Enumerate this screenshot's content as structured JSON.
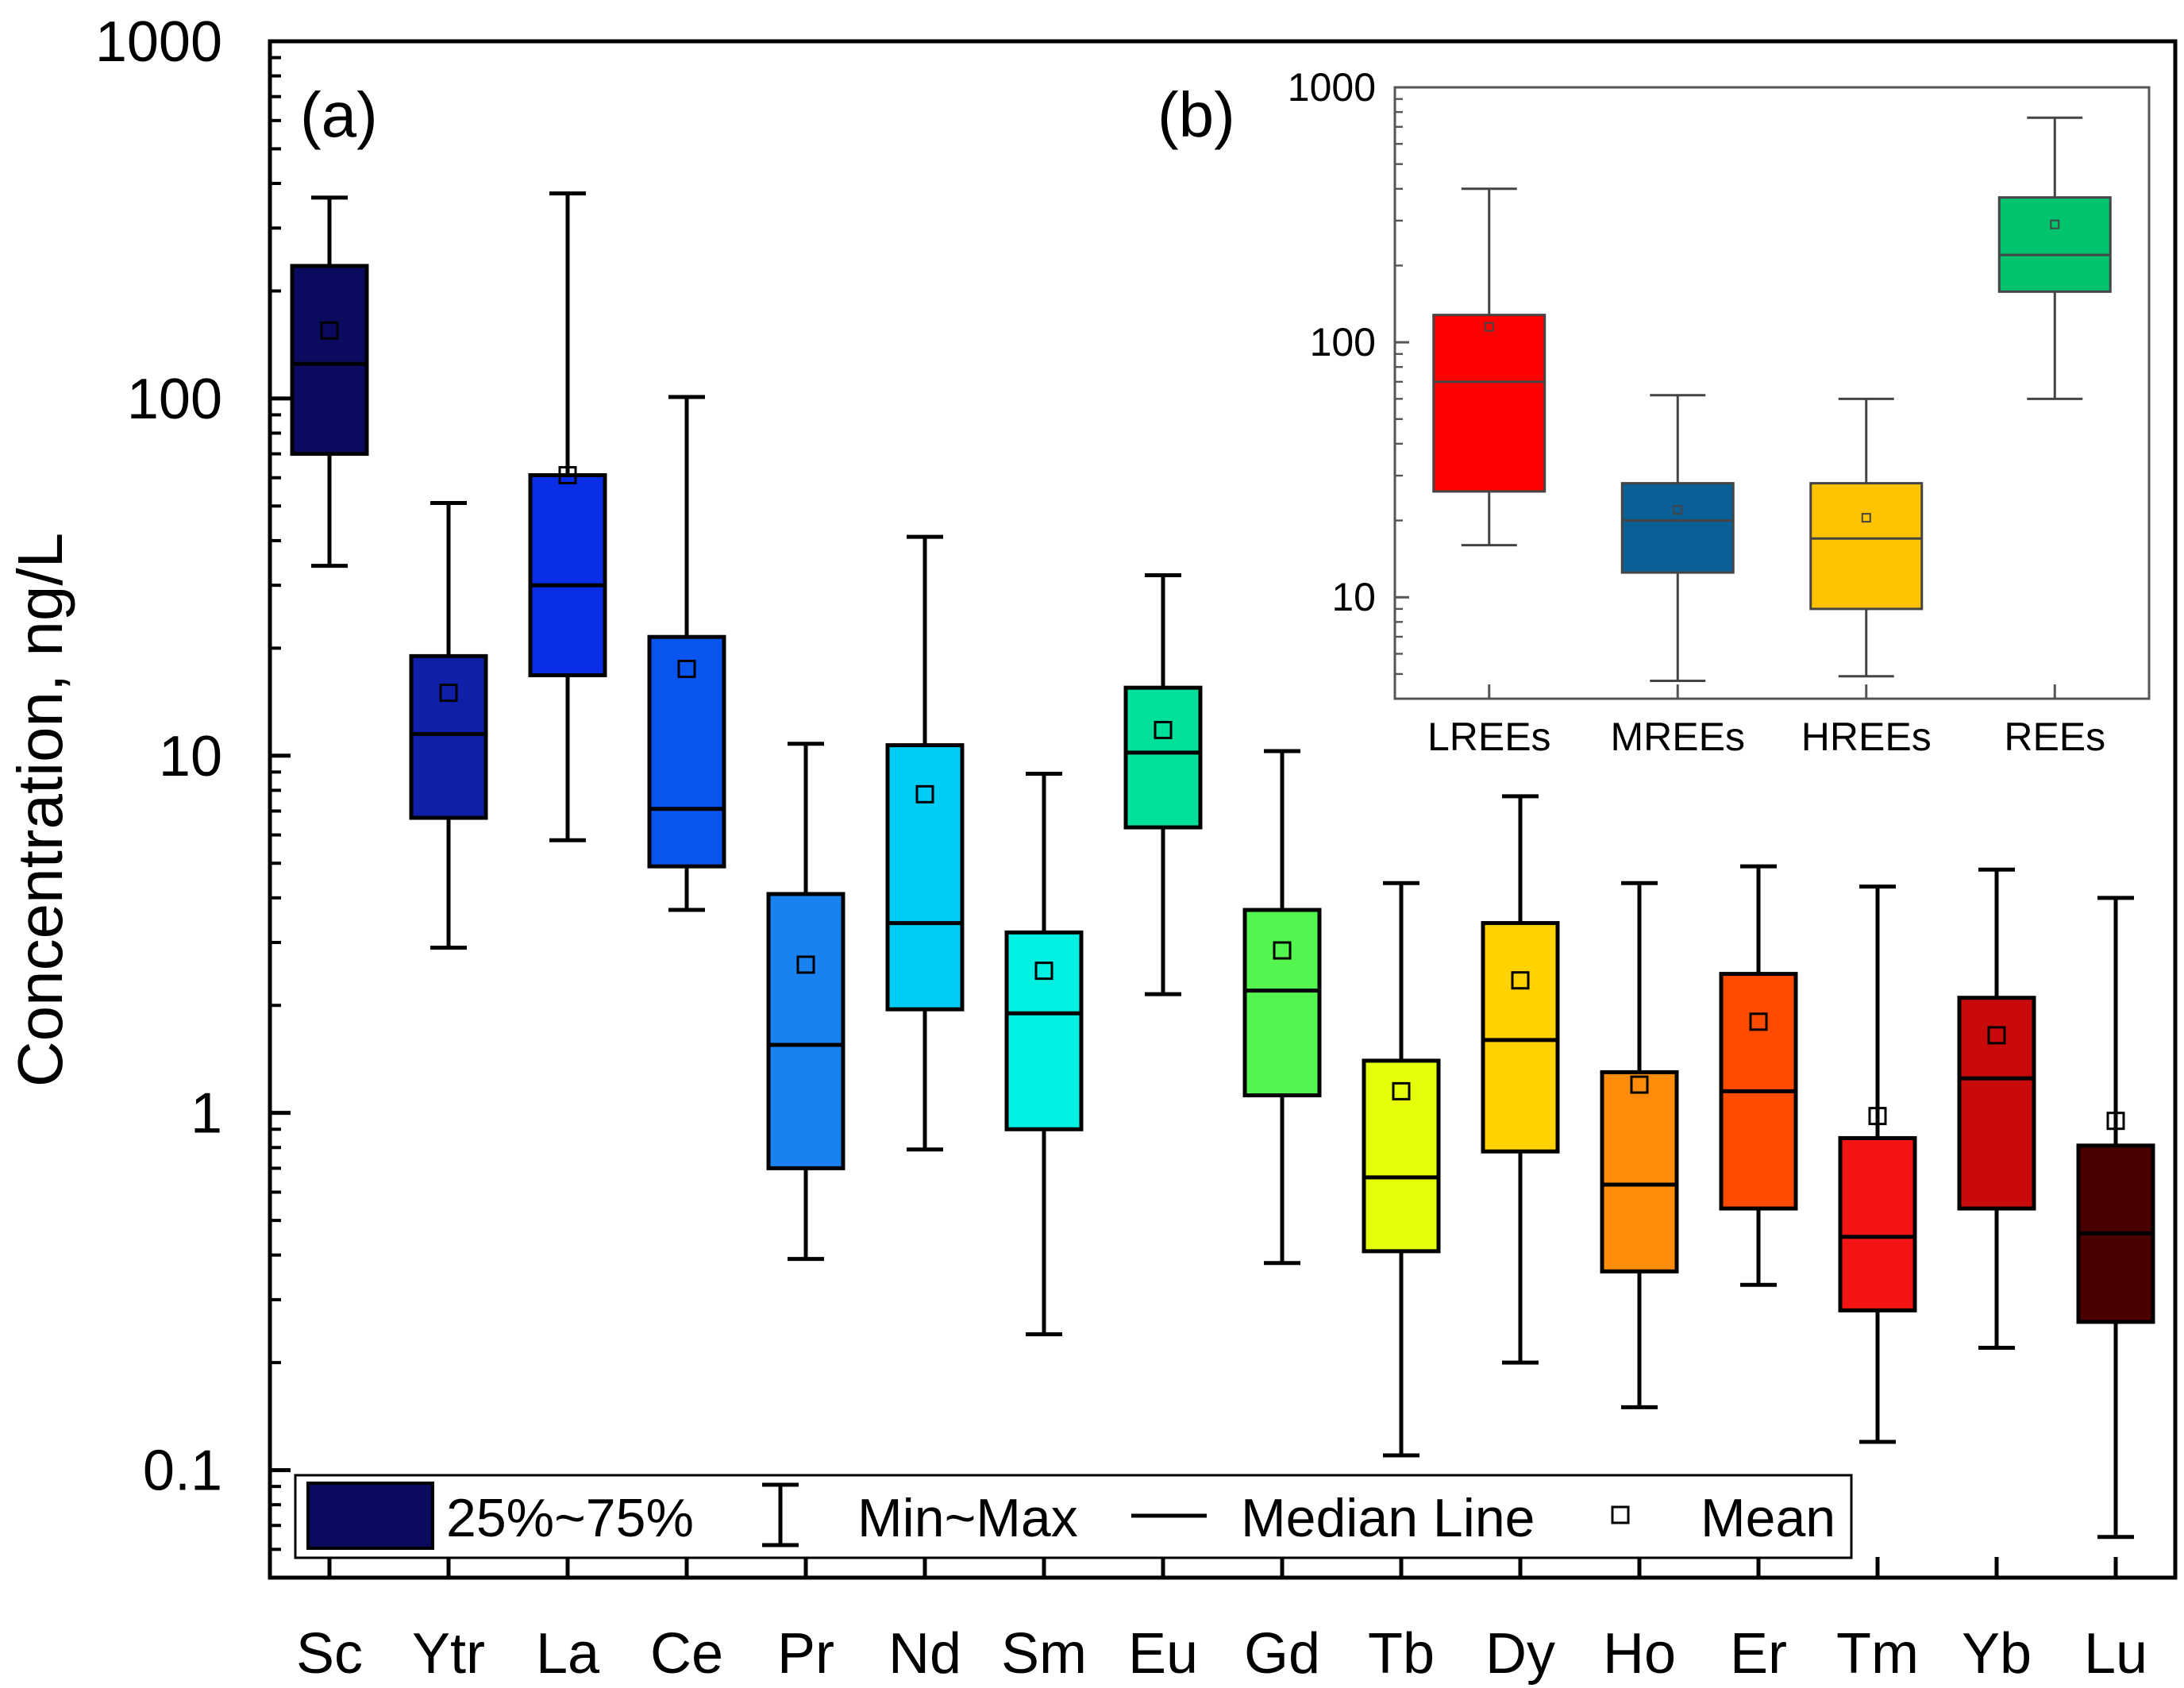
{
  "chart_data": [
    {
      "type": "box",
      "panel_label": "(a)",
      "ylabel": "Concentration, ng/L",
      "yscale": "log",
      "ylim": [
        0.05,
        1000
      ],
      "yticks": [
        {
          "value": 1000,
          "label": "1000"
        },
        {
          "value": 100,
          "label": "100"
        },
        {
          "value": 10,
          "label": "10"
        },
        {
          "value": 1,
          "label": "1"
        },
        {
          "value": 0.1,
          "label": "0.1"
        }
      ],
      "categories": [
        "Sc",
        "Ytr",
        "La",
        "Ce",
        "Pr",
        "Nd",
        "Sm",
        "Eu",
        "Gd",
        "Tb",
        "Dy",
        "Ho",
        "Er",
        "Tm",
        "Yb",
        "Lu"
      ],
      "boxes": [
        {
          "name": "Sc",
          "min": 34,
          "q1": 70,
          "median": 125,
          "q3": 235,
          "max": 365,
          "mean": 155,
          "color": "#0a0a5e"
        },
        {
          "name": "Ytr",
          "min": 2.9,
          "q1": 6.7,
          "median": 11.5,
          "q3": 19,
          "max": 51,
          "mean": 15,
          "color": "#0f1fa8"
        },
        {
          "name": "La",
          "min": 5.8,
          "q1": 16.8,
          "median": 30,
          "q3": 61,
          "max": 375,
          "mean": 61,
          "color": "#0a2ee6"
        },
        {
          "name": "Ce",
          "min": 3.7,
          "q1": 4.9,
          "median": 7.1,
          "q3": 21.5,
          "max": 101,
          "mean": 17.5,
          "color": "#0a55f0"
        },
        {
          "name": "Pr",
          "min": 0.39,
          "q1": 0.7,
          "median": 1.55,
          "q3": 4.1,
          "max": 10.8,
          "mean": 2.6,
          "color": "#1a82f0"
        },
        {
          "name": "Nd",
          "min": 0.79,
          "q1": 1.95,
          "median": 3.4,
          "q3": 10.7,
          "max": 41,
          "mean": 7.8,
          "color": "#00cdf5"
        },
        {
          "name": "Sm",
          "min": 0.24,
          "q1": 0.9,
          "median": 1.9,
          "q3": 3.2,
          "max": 8.9,
          "mean": 2.5,
          "color": "#00f0e1"
        },
        {
          "name": "Eu",
          "min": 2.15,
          "q1": 6.3,
          "median": 10.2,
          "q3": 15.5,
          "max": 32,
          "mean": 11.8,
          "color": "#00e09a"
        },
        {
          "name": "Gd",
          "min": 0.38,
          "q1": 1.12,
          "median": 2.2,
          "q3": 3.7,
          "max": 10.3,
          "mean": 2.85,
          "color": "#55f550"
        },
        {
          "name": "Tb",
          "min": 0.11,
          "q1": 0.41,
          "median": 0.66,
          "q3": 1.4,
          "max": 4.4,
          "mean": 1.15,
          "color": "#e6ff0a"
        },
        {
          "name": "Dy",
          "min": 0.2,
          "q1": 0.78,
          "median": 1.6,
          "q3": 3.4,
          "max": 7.7,
          "mean": 2.35,
          "color": "#ffd200"
        },
        {
          "name": "Ho",
          "min": 0.15,
          "q1": 0.36,
          "median": 0.63,
          "q3": 1.3,
          "max": 4.4,
          "mean": 1.2,
          "color": "#ff8c0a"
        },
        {
          "name": "Er",
          "min": 0.33,
          "q1": 0.54,
          "median": 1.15,
          "q3": 2.45,
          "max": 4.9,
          "mean": 1.8,
          "color": "#ff4b00"
        },
        {
          "name": "Tm",
          "min": 0.12,
          "q1": 0.28,
          "median": 0.45,
          "q3": 0.85,
          "max": 4.3,
          "mean": 0.98,
          "color": "#f51414"
        },
        {
          "name": "Yb",
          "min": 0.22,
          "q1": 0.54,
          "median": 1.25,
          "q3": 2.1,
          "max": 4.8,
          "mean": 1.65,
          "color": "#c80a0a"
        },
        {
          "name": "Lu",
          "min": 0.065,
          "q1": 0.26,
          "median": 0.46,
          "q3": 0.81,
          "max": 4.0,
          "mean": 0.95,
          "color": "#4b0000"
        }
      ],
      "legend": {
        "box_label": "25%~75%",
        "whisker_label": "Min~Max",
        "median_label": "Median Line",
        "mean_label": "Mean",
        "position": "bottom-left"
      }
    },
    {
      "type": "box",
      "panel_label": "(b)",
      "yscale": "log",
      "ylim": [
        4,
        1000
      ],
      "yticks": [
        {
          "value": 1000,
          "label": "1000"
        },
        {
          "value": 100,
          "label": "100"
        },
        {
          "value": 10,
          "label": "10"
        }
      ],
      "categories": [
        "LREEs",
        "MREEs",
        "HREEs",
        "REEs"
      ],
      "boxes": [
        {
          "name": "LREEs",
          "min": 16,
          "q1": 26,
          "median": 70,
          "q3": 128,
          "max": 400,
          "mean": 115,
          "color": "#ff0000"
        },
        {
          "name": "MREEs",
          "min": 4.7,
          "q1": 12.5,
          "median": 20,
          "q3": 28,
          "max": 62,
          "mean": 22,
          "color": "#0a5f96"
        },
        {
          "name": "HREEs",
          "min": 4.9,
          "q1": 9,
          "median": 17,
          "q3": 28,
          "max": 60,
          "mean": 20.5,
          "color": "#ffc300"
        },
        {
          "name": "REEs",
          "min": 60,
          "q1": 158,
          "median": 220,
          "q3": 370,
          "max": 760,
          "mean": 290,
          "color": "#00c36e"
        }
      ]
    }
  ]
}
